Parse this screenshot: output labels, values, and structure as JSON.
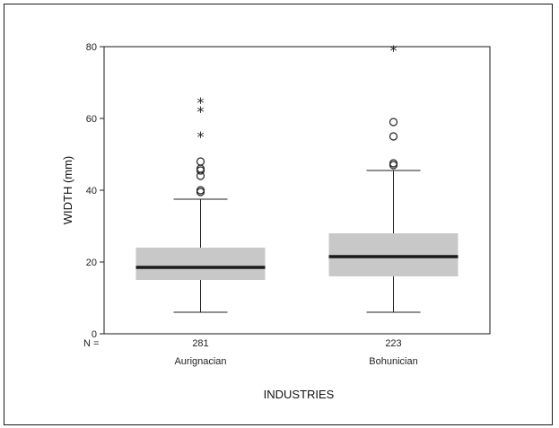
{
  "chart_data": {
    "type": "box",
    "xlabel": "INDUSTRIES",
    "ylabel": "WIDTH (mm)",
    "ylim": [
      0,
      80
    ],
    "yticks": [
      0,
      20,
      40,
      60,
      80
    ],
    "n_label": "N =",
    "grid": false,
    "categories": [
      "Aurignacian",
      "Bohunician"
    ],
    "boxes": [
      {
        "category": "Aurignacian",
        "n": "281",
        "whisker_low": 6,
        "q1": 15,
        "median": 18.5,
        "q3": 24,
        "whisker_high": 37.5,
        "outliers": [
          39.5,
          40,
          44,
          45.5,
          46,
          48
        ],
        "extremes": [
          55,
          62,
          64.5
        ]
      },
      {
        "category": "Bohunician",
        "n": "223",
        "whisker_low": 6,
        "q1": 16,
        "median": 21.5,
        "q3": 28,
        "whisker_high": 45.5,
        "outliers": [
          47,
          47.5,
          55,
          59
        ],
        "extremes": [
          79
        ]
      }
    ],
    "colors": {
      "box_fill": "#c8c8c8",
      "median": "#1a1a1a",
      "line": "#222222"
    }
  }
}
